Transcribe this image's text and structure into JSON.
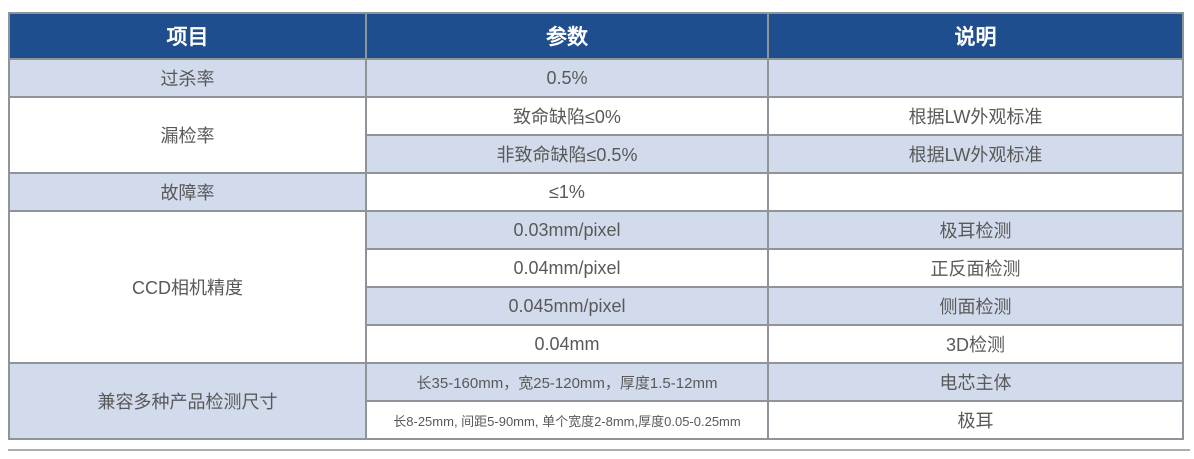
{
  "table": {
    "columns": [
      {
        "label": "项目"
      },
      {
        "label": "参数"
      },
      {
        "label": "说明"
      }
    ],
    "rows": [
      {
        "item": "过杀率",
        "param": "0.5%",
        "desc": ""
      },
      {
        "item": "漏检率",
        "param": "致命缺陷≤0%",
        "desc": "根据LW外观标准"
      },
      {
        "param": "非致命缺陷≤0.5%",
        "desc": "根据LW外观标准"
      },
      {
        "item": "故障率",
        "param": "≤1%",
        "desc": ""
      },
      {
        "item": "CCD相机精度",
        "param": "0.03mm/pixel",
        "desc": "极耳检测"
      },
      {
        "param": "0.04mm/pixel",
        "desc": "正反面检测"
      },
      {
        "param": "0.045mm/pixel",
        "desc": "侧面检测"
      },
      {
        "param": "0.04mm",
        "desc": "3D检测"
      },
      {
        "item": "兼容多种产品检测尺寸",
        "param": "长35-160mm，宽25-120mm，厚度1.5-12mm",
        "desc": "电芯主体"
      },
      {
        "param": "长8-25mm, 间距5-90mm, 单个宽度2-8mm,厚度0.05-0.25mm",
        "desc": "极耳"
      }
    ]
  },
  "colors": {
    "header_bg": "#1f4e8e",
    "header_text": "#ffffff",
    "row_shade_bg": "#d2dbeb",
    "row_plain_bg": "#ffffff",
    "border": "#8f949b",
    "body_text": "#595959",
    "bottom_rule": "#aaadb2"
  }
}
